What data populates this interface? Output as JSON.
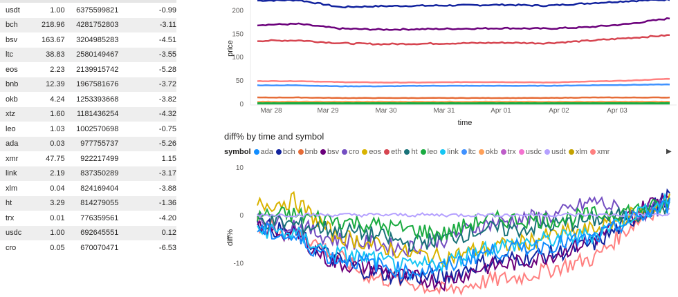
{
  "table": {
    "rows": [
      {
        "symbol": "usdt",
        "price": "1.00",
        "volume": "6375599821",
        "diff": "-0.99"
      },
      {
        "symbol": "bch",
        "price": "218.96",
        "volume": "4281752803",
        "diff": "-3.11"
      },
      {
        "symbol": "bsv",
        "price": "163.67",
        "volume": "3204985283",
        "diff": "-4.51"
      },
      {
        "symbol": "ltc",
        "price": "38.83",
        "volume": "2580149467",
        "diff": "-3.55"
      },
      {
        "symbol": "eos",
        "price": "2.23",
        "volume": "2139915742",
        "diff": "-5.28"
      },
      {
        "symbol": "bnb",
        "price": "12.39",
        "volume": "1967581676",
        "diff": "-3.72"
      },
      {
        "symbol": "okb",
        "price": "4.24",
        "volume": "1253393668",
        "diff": "-3.82"
      },
      {
        "symbol": "xtz",
        "price": "1.60",
        "volume": "1181436254",
        "diff": "-4.32"
      },
      {
        "symbol": "leo",
        "price": "1.03",
        "volume": "1002570698",
        "diff": "-0.75"
      },
      {
        "symbol": "ada",
        "price": "0.03",
        "volume": "977755737",
        "diff": "-5.26"
      },
      {
        "symbol": "xmr",
        "price": "47.75",
        "volume": "922217499",
        "diff": "1.15"
      },
      {
        "symbol": "link",
        "price": "2.19",
        "volume": "837350289",
        "diff": "-3.17"
      },
      {
        "symbol": "xlm",
        "price": "0.04",
        "volume": "824169404",
        "diff": "-3.88"
      },
      {
        "symbol": "ht",
        "price": "3.29",
        "volume": "814279055",
        "diff": "-1.36"
      },
      {
        "symbol": "trx",
        "price": "0.01",
        "volume": "776359561",
        "diff": "-4.20"
      },
      {
        "symbol": "usdc",
        "price": "1.00",
        "volume": "692645551",
        "diff": "0.12"
      },
      {
        "symbol": "cro",
        "price": "0.05",
        "volume": "670070471",
        "diff": "-6.53"
      }
    ]
  },
  "price_chart": {
    "ylabel": "price",
    "xlabel": "time",
    "yticks": [
      "0",
      "50",
      "100",
      "150",
      "200"
    ],
    "xticks": [
      "Mar 28",
      "Mar 29",
      "Mar 30",
      "Mar 31",
      "Apr 01",
      "Apr 02",
      "Apr 03"
    ]
  },
  "diff_chart": {
    "title": "diff% by time and symbol",
    "ylabel": "diff%",
    "yticks": [
      "10",
      "0",
      "-10"
    ]
  },
  "legend": {
    "title": "symbol",
    "items": [
      {
        "name": "ada",
        "color": "#118DFF"
      },
      {
        "name": "bch",
        "color": "#12239E"
      },
      {
        "name": "bnb",
        "color": "#E66C37"
      },
      {
        "name": "bsv",
        "color": "#6B007B"
      },
      {
        "name": "cro",
        "color": "#744EC2"
      },
      {
        "name": "eos",
        "color": "#D9B300"
      },
      {
        "name": "eth",
        "color": "#D64550"
      },
      {
        "name": "ht",
        "color": "#197278"
      },
      {
        "name": "leo",
        "color": "#1AAB40"
      },
      {
        "name": "link",
        "color": "#15C6F4"
      },
      {
        "name": "ltc",
        "color": "#4092FF"
      },
      {
        "name": "okb",
        "color": "#FFA058"
      },
      {
        "name": "trx",
        "color": "#BE5DC9"
      },
      {
        "name": "usdc",
        "color": "#F472D0"
      },
      {
        "name": "usdt",
        "color": "#B5A1FF"
      },
      {
        "name": "xlm",
        "color": "#C4A200"
      },
      {
        "name": "xmr",
        "color": "#FF8080"
      }
    ]
  },
  "chart_data": [
    {
      "type": "line",
      "xlabel": "time",
      "ylabel": "price",
      "ylim": [
        0,
        230
      ],
      "x_range": [
        "Mar 27",
        "Apr 04"
      ],
      "x_ticks": [
        "Mar 28",
        "Mar 29",
        "Mar 30",
        "Mar 31",
        "Apr 01",
        "Apr 02",
        "Apr 03"
      ],
      "series": [
        {
          "name": "bch",
          "color": "#12239E",
          "values": [
            220,
            221,
            206,
            208,
            209,
            210,
            211,
            209,
            214,
            219,
            222
          ]
        },
        {
          "name": "bsv",
          "color": "#6B007B",
          "values": [
            168,
            170,
            160,
            158,
            159,
            160,
            161,
            160,
            163,
            170,
            182
          ]
        },
        {
          "name": "eth",
          "color": "#D64550",
          "values": [
            134,
            135,
            129,
            127,
            128,
            129,
            130,
            129,
            134,
            140,
            146
          ]
        },
        {
          "name": "xmr",
          "color": "#FF8080",
          "values": [
            48,
            48,
            46,
            45,
            45,
            46,
            46,
            45,
            47,
            49,
            53
          ]
        },
        {
          "name": "ltc",
          "color": "#4092FF",
          "values": [
            39,
            39,
            37,
            37,
            38,
            38,
            38,
            38,
            39,
            40,
            41
          ]
        },
        {
          "name": "bnb",
          "color": "#E66C37",
          "values": [
            13,
            13,
            12,
            12,
            12,
            12,
            12,
            12,
            13,
            13,
            13
          ]
        },
        {
          "name": "okb",
          "color": "#FFA058",
          "values": [
            4,
            4,
            4,
            4,
            4,
            4,
            4,
            4,
            4,
            4,
            4
          ]
        },
        {
          "name": "leo",
          "color": "#1AAB40",
          "values": [
            1,
            1,
            1,
            1,
            1,
            1,
            1,
            1,
            1,
            1,
            1
          ]
        }
      ]
    },
    {
      "type": "line",
      "ylabel": "diff%",
      "ylim": [
        -14,
        10
      ],
      "y_ticks": [
        10,
        0,
        -10
      ],
      "series": [
        {
          "name": "xmr",
          "color": "#FF8080",
          "values": [
            -2,
            -3,
            -8,
            -13,
            -14,
            -16,
            -14,
            -13,
            -11,
            -9,
            -2,
            3
          ]
        },
        {
          "name": "bch",
          "color": "#12239E",
          "values": [
            -2,
            -4,
            -9,
            -12,
            -13,
            -13,
            -10,
            -9,
            -8,
            -6,
            -1,
            4
          ]
        },
        {
          "name": "bsv",
          "color": "#6B007B",
          "values": [
            -3,
            -4,
            -10,
            -11,
            -13,
            -14,
            -11,
            -10,
            -8,
            -5,
            0,
            5
          ]
        },
        {
          "name": "cro",
          "color": "#744EC2",
          "values": [
            -1,
            -2,
            -5,
            -6,
            -7,
            -5,
            -2,
            -1,
            0,
            3,
            0,
            2
          ]
        },
        {
          "name": "eos",
          "color": "#D9B300",
          "values": [
            2,
            3,
            -4,
            -6,
            -8,
            -9,
            -7,
            -6,
            -4,
            -3,
            0,
            3
          ]
        },
        {
          "name": "ht",
          "color": "#197278",
          "values": [
            -1,
            -2,
            -3,
            -4,
            -6,
            -5,
            -3,
            -3,
            -2,
            -1,
            0,
            2
          ]
        },
        {
          "name": "leo",
          "color": "#1AAB40",
          "values": [
            0,
            0,
            -1,
            -2,
            -3,
            -4,
            -1,
            -1,
            -1,
            0,
            1,
            2
          ]
        },
        {
          "name": "usdt",
          "color": "#B5A1FF",
          "values": [
            0,
            0,
            0,
            0,
            0,
            0,
            0,
            0,
            0,
            0,
            0,
            0
          ]
        },
        {
          "name": "link",
          "color": "#15C6F4",
          "values": [
            -3,
            -4,
            -8,
            -9,
            -11,
            -10,
            -7,
            -6,
            -5,
            -4,
            0,
            3
          ]
        },
        {
          "name": "ada",
          "color": "#118DFF",
          "values": [
            -3,
            -5,
            -9,
            -10,
            -12,
            -11,
            -8,
            -7,
            -6,
            -5,
            -1,
            2
          ]
        }
      ]
    }
  ]
}
